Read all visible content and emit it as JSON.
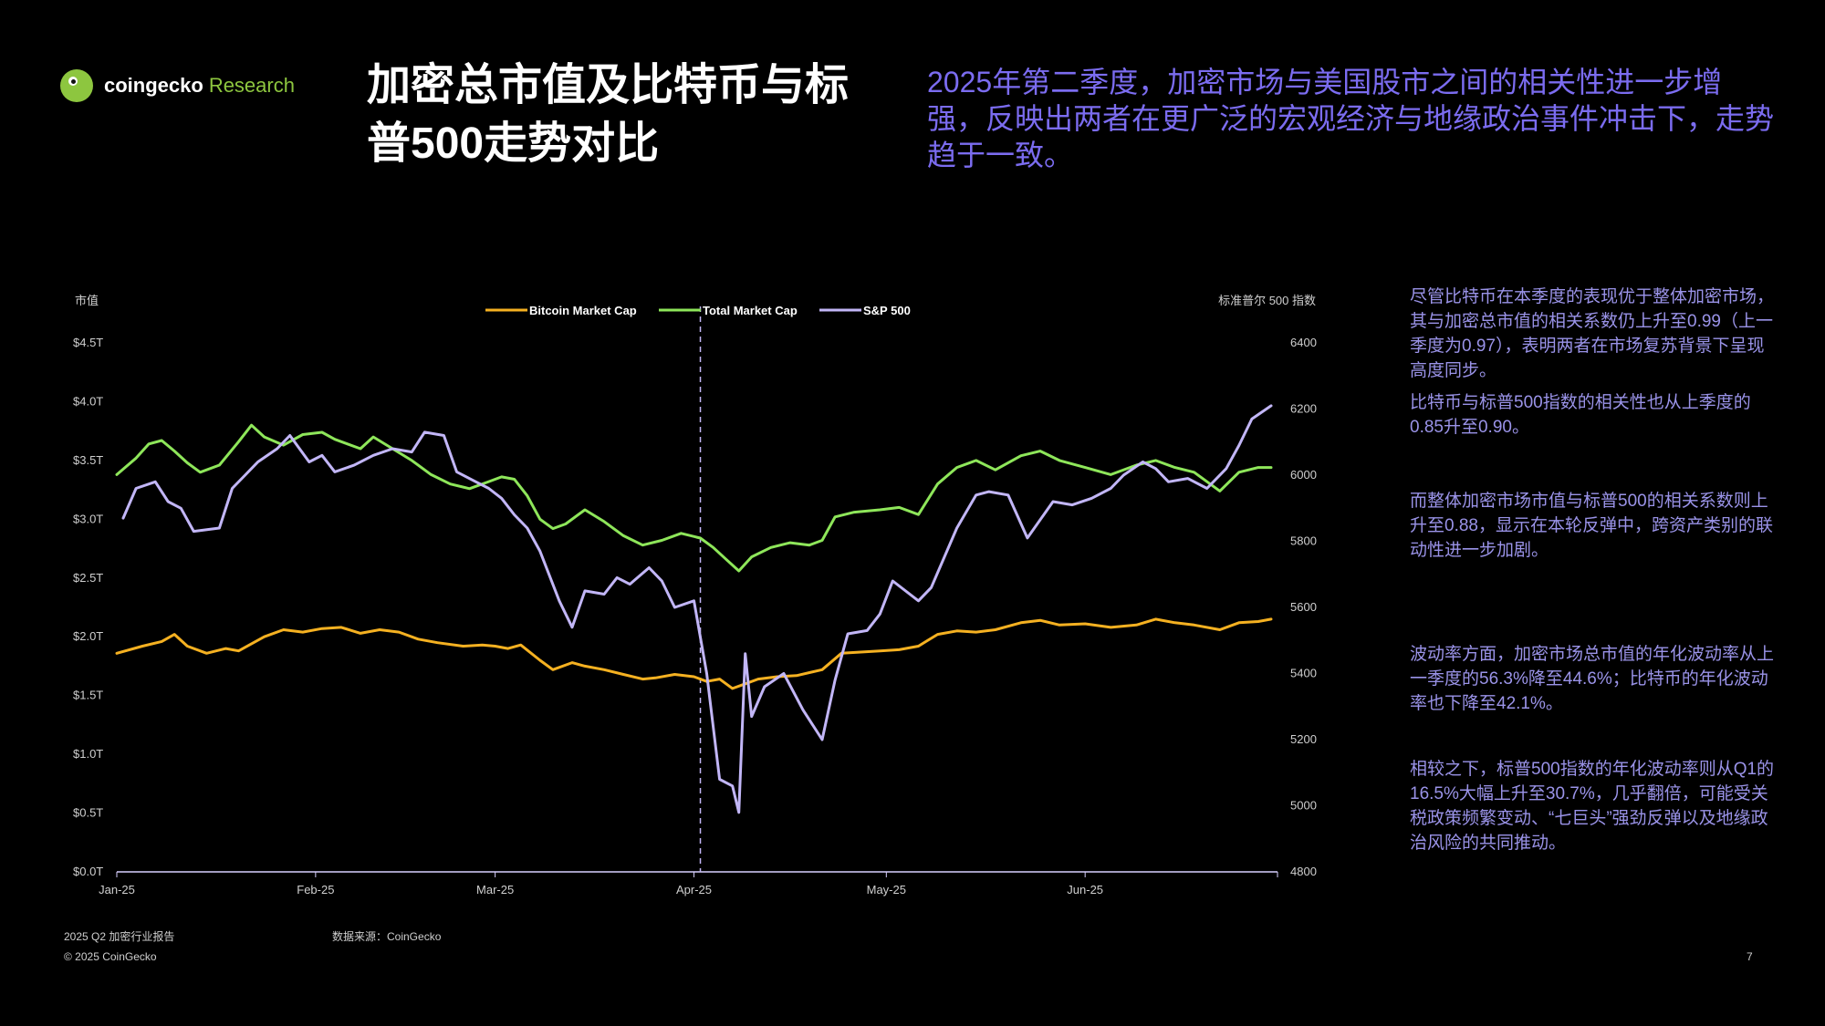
{
  "logo": {
    "brand": "coingecko",
    "brand2": "Research"
  },
  "title": "加密总市值及比特币与标普500走势对比",
  "summary": "2025年第二季度，加密市场与美国股市之间的相关性进一步增强，反映出两者在更广泛的宏观经济与地缘政治事件冲击下，走势趋于一致。",
  "side_notes": [
    "尽管比特币在本季度的表现优于整体加密市场，其与加密总市值的相关系数仍上升至0.99（上一季度为0.97），表明两者在市场复苏背景下呈现高度同步。",
    "比特币与标普500指数的相关性也从上季度的0.85升至0.90。",
    "而整体加密市场市值与标普500的相关系数则上升至0.88，显示在本轮反弹中，跨资产类别的联动性进一步加剧。",
    "波动率方面，加密市场总市值的年化波动率从上一季度的56.3%降至44.6%；比特币的年化波动率也下降至42.1%。",
    "相较之下，标普500指数的年化波动率则从Q1的16.5%大幅上升至30.7%，几乎翻倍，可能受关税政策频繁变动、“七巨头”强劲反弹以及地缘政治风险的共同推动。"
  ],
  "footer": {
    "report": "2025 Q2 加密行业报告",
    "source": "数据来源：CoinGecko",
    "copyright": "© 2025 CoinGecko",
    "page": "7"
  },
  "colors": {
    "bitcoin": "#f5b121",
    "total": "#8ee65a",
    "sp500": "#c2b6f7",
    "accent": "#7b6cf0"
  },
  "chart_data": {
    "type": "line",
    "left_axis_label": "市值",
    "right_axis_label": "标准普尔 500 指数",
    "left_ticks": [
      "$0.0T",
      "$0.5T",
      "$1.0T",
      "$1.5T",
      "$2.0T",
      "$2.5T",
      "$3.0T",
      "$3.5T",
      "$4.0T",
      "$4.5T"
    ],
    "right_ticks": [
      "4800",
      "5000",
      "5200",
      "5400",
      "5600",
      "5800",
      "6000",
      "6200",
      "6400"
    ],
    "x_ticks": [
      "Jan-25",
      "Feb-25",
      "Mar-25",
      "Apr-25",
      "May-25",
      "Jun-25"
    ],
    "left_range": [
      0,
      4.5
    ],
    "right_range": [
      4800,
      6400
    ],
    "marker_date": "2025-04-02",
    "legend_position": "top-center",
    "series": [
      {
        "name": "Bitcoin Market Cap",
        "axis": "left",
        "points": [
          [
            "2025-01-01",
            1.86
          ],
          [
            "2025-01-05",
            1.92
          ],
          [
            "2025-01-08",
            1.96
          ],
          [
            "2025-01-10",
            2.02
          ],
          [
            "2025-01-12",
            1.92
          ],
          [
            "2025-01-15",
            1.86
          ],
          [
            "2025-01-18",
            1.9
          ],
          [
            "2025-01-20",
            1.88
          ],
          [
            "2025-01-24",
            2.0
          ],
          [
            "2025-01-27",
            2.06
          ],
          [
            "2025-01-30",
            2.04
          ],
          [
            "2025-02-02",
            2.07
          ],
          [
            "2025-02-05",
            2.08
          ],
          [
            "2025-02-08",
            2.03
          ],
          [
            "2025-02-11",
            2.06
          ],
          [
            "2025-02-14",
            2.04
          ],
          [
            "2025-02-17",
            1.98
          ],
          [
            "2025-02-20",
            1.95
          ],
          [
            "2025-02-24",
            1.92
          ],
          [
            "2025-02-27",
            1.93
          ],
          [
            "2025-03-01",
            1.92
          ],
          [
            "2025-03-03",
            1.9
          ],
          [
            "2025-03-05",
            1.93
          ],
          [
            "2025-03-08",
            1.8
          ],
          [
            "2025-03-10",
            1.72
          ],
          [
            "2025-03-13",
            1.78
          ],
          [
            "2025-03-15",
            1.75
          ],
          [
            "2025-03-18",
            1.72
          ],
          [
            "2025-03-21",
            1.68
          ],
          [
            "2025-03-24",
            1.64
          ],
          [
            "2025-03-26",
            1.65
          ],
          [
            "2025-03-29",
            1.68
          ],
          [
            "2025-04-01",
            1.66
          ],
          [
            "2025-04-03",
            1.62
          ],
          [
            "2025-04-05",
            1.64
          ],
          [
            "2025-04-07",
            1.56
          ],
          [
            "2025-04-09",
            1.6
          ],
          [
            "2025-04-11",
            1.64
          ],
          [
            "2025-04-14",
            1.66
          ],
          [
            "2025-04-17",
            1.67
          ],
          [
            "2025-04-21",
            1.72
          ],
          [
            "2025-04-24",
            1.86
          ],
          [
            "2025-04-27",
            1.87
          ],
          [
            "2025-04-30",
            1.88
          ],
          [
            "2025-05-03",
            1.89
          ],
          [
            "2025-05-06",
            1.92
          ],
          [
            "2025-05-09",
            2.02
          ],
          [
            "2025-05-12",
            2.05
          ],
          [
            "2025-05-15",
            2.04
          ],
          [
            "2025-05-18",
            2.06
          ],
          [
            "2025-05-22",
            2.12
          ],
          [
            "2025-05-25",
            2.14
          ],
          [
            "2025-05-28",
            2.1
          ],
          [
            "2025-06-01",
            2.11
          ],
          [
            "2025-06-05",
            2.08
          ],
          [
            "2025-06-09",
            2.1
          ],
          [
            "2025-06-12",
            2.15
          ],
          [
            "2025-06-15",
            2.12
          ],
          [
            "2025-06-18",
            2.1
          ],
          [
            "2025-06-22",
            2.06
          ],
          [
            "2025-06-25",
            2.12
          ],
          [
            "2025-06-28",
            2.13
          ],
          [
            "2025-06-30",
            2.15
          ]
        ]
      },
      {
        "name": "Total Market Cap",
        "axis": "left",
        "points": [
          [
            "2025-01-01",
            3.38
          ],
          [
            "2025-01-04",
            3.52
          ],
          [
            "2025-01-06",
            3.64
          ],
          [
            "2025-01-08",
            3.67
          ],
          [
            "2025-01-10",
            3.58
          ],
          [
            "2025-01-12",
            3.48
          ],
          [
            "2025-01-14",
            3.4
          ],
          [
            "2025-01-17",
            3.46
          ],
          [
            "2025-01-20",
            3.66
          ],
          [
            "2025-01-22",
            3.8
          ],
          [
            "2025-01-24",
            3.7
          ],
          [
            "2025-01-27",
            3.63
          ],
          [
            "2025-01-30",
            3.72
          ],
          [
            "2025-02-02",
            3.74
          ],
          [
            "2025-02-04",
            3.68
          ],
          [
            "2025-02-08",
            3.6
          ],
          [
            "2025-02-10",
            3.7
          ],
          [
            "2025-02-13",
            3.6
          ],
          [
            "2025-02-16",
            3.5
          ],
          [
            "2025-02-19",
            3.38
          ],
          [
            "2025-02-22",
            3.3
          ],
          [
            "2025-02-25",
            3.26
          ],
          [
            "2025-02-28",
            3.32
          ],
          [
            "2025-03-02",
            3.36
          ],
          [
            "2025-03-04",
            3.34
          ],
          [
            "2025-03-06",
            3.2
          ],
          [
            "2025-03-08",
            3.0
          ],
          [
            "2025-03-10",
            2.92
          ],
          [
            "2025-03-12",
            2.96
          ],
          [
            "2025-03-15",
            3.08
          ],
          [
            "2025-03-18",
            2.98
          ],
          [
            "2025-03-21",
            2.86
          ],
          [
            "2025-03-24",
            2.78
          ],
          [
            "2025-03-27",
            2.82
          ],
          [
            "2025-03-30",
            2.88
          ],
          [
            "2025-04-02",
            2.84
          ],
          [
            "2025-04-04",
            2.76
          ],
          [
            "2025-04-06",
            2.66
          ],
          [
            "2025-04-08",
            2.56
          ],
          [
            "2025-04-10",
            2.68
          ],
          [
            "2025-04-13",
            2.76
          ],
          [
            "2025-04-16",
            2.8
          ],
          [
            "2025-04-19",
            2.78
          ],
          [
            "2025-04-21",
            2.82
          ],
          [
            "2025-04-23",
            3.02
          ],
          [
            "2025-04-26",
            3.06
          ],
          [
            "2025-04-30",
            3.08
          ],
          [
            "2025-05-03",
            3.1
          ],
          [
            "2025-05-06",
            3.04
          ],
          [
            "2025-05-09",
            3.3
          ],
          [
            "2025-05-12",
            3.44
          ],
          [
            "2025-05-15",
            3.5
          ],
          [
            "2025-05-18",
            3.42
          ],
          [
            "2025-05-22",
            3.54
          ],
          [
            "2025-05-25",
            3.58
          ],
          [
            "2025-05-28",
            3.5
          ],
          [
            "2025-06-01",
            3.44
          ],
          [
            "2025-06-05",
            3.38
          ],
          [
            "2025-06-09",
            3.46
          ],
          [
            "2025-06-12",
            3.5
          ],
          [
            "2025-06-15",
            3.44
          ],
          [
            "2025-06-18",
            3.4
          ],
          [
            "2025-06-22",
            3.24
          ],
          [
            "2025-06-25",
            3.4
          ],
          [
            "2025-06-28",
            3.44
          ],
          [
            "2025-06-30",
            3.44
          ]
        ]
      },
      {
        "name": "S&P 500",
        "axis": "right",
        "points": [
          [
            "2025-01-02",
            5870
          ],
          [
            "2025-01-04",
            5960
          ],
          [
            "2025-01-07",
            5980
          ],
          [
            "2025-01-09",
            5920
          ],
          [
            "2025-01-11",
            5900
          ],
          [
            "2025-01-13",
            5830
          ],
          [
            "2025-01-17",
            5840
          ],
          [
            "2025-01-19",
            5960
          ],
          [
            "2025-01-21",
            6000
          ],
          [
            "2025-01-23",
            6040
          ],
          [
            "2025-01-26",
            6080
          ],
          [
            "2025-01-28",
            6120
          ],
          [
            "2025-01-31",
            6040
          ],
          [
            "2025-02-02",
            6060
          ],
          [
            "2025-02-04",
            6010
          ],
          [
            "2025-02-07",
            6030
          ],
          [
            "2025-02-10",
            6060
          ],
          [
            "2025-02-13",
            6080
          ],
          [
            "2025-02-16",
            6070
          ],
          [
            "2025-02-18",
            6130
          ],
          [
            "2025-02-21",
            6120
          ],
          [
            "2025-02-23",
            6010
          ],
          [
            "2025-02-26",
            5980
          ],
          [
            "2025-02-28",
            5960
          ],
          [
            "2025-03-02",
            5930
          ],
          [
            "2025-03-04",
            5880
          ],
          [
            "2025-03-06",
            5840
          ],
          [
            "2025-03-08",
            5770
          ],
          [
            "2025-03-11",
            5620
          ],
          [
            "2025-03-13",
            5540
          ],
          [
            "2025-03-15",
            5650
          ],
          [
            "2025-03-18",
            5640
          ],
          [
            "2025-03-20",
            5690
          ],
          [
            "2025-03-22",
            5670
          ],
          [
            "2025-03-25",
            5720
          ],
          [
            "2025-03-27",
            5680
          ],
          [
            "2025-03-29",
            5600
          ],
          [
            "2025-04-01",
            5620
          ],
          [
            "2025-04-03",
            5400
          ],
          [
            "2025-04-05",
            5080
          ],
          [
            "2025-04-07",
            5060
          ],
          [
            "2025-04-08",
            4980
          ],
          [
            "2025-04-09",
            5460
          ],
          [
            "2025-04-10",
            5270
          ],
          [
            "2025-04-12",
            5360
          ],
          [
            "2025-04-15",
            5400
          ],
          [
            "2025-04-18",
            5290
          ],
          [
            "2025-04-21",
            5200
          ],
          [
            "2025-04-23",
            5380
          ],
          [
            "2025-04-25",
            5520
          ],
          [
            "2025-04-28",
            5530
          ],
          [
            "2025-04-30",
            5580
          ],
          [
            "2025-05-02",
            5680
          ],
          [
            "2025-05-06",
            5620
          ],
          [
            "2025-05-08",
            5660
          ],
          [
            "2025-05-12",
            5840
          ],
          [
            "2025-05-15",
            5940
          ],
          [
            "2025-05-17",
            5950
          ],
          [
            "2025-05-20",
            5940
          ],
          [
            "2025-05-23",
            5810
          ],
          [
            "2025-05-27",
            5920
          ],
          [
            "2025-05-30",
            5910
          ],
          [
            "2025-06-02",
            5930
          ],
          [
            "2025-06-05",
            5960
          ],
          [
            "2025-06-07",
            6000
          ],
          [
            "2025-06-10",
            6040
          ],
          [
            "2025-06-12",
            6020
          ],
          [
            "2025-06-14",
            5980
          ],
          [
            "2025-06-17",
            5990
          ],
          [
            "2025-06-20",
            5960
          ],
          [
            "2025-06-23",
            6020
          ],
          [
            "2025-06-25",
            6090
          ],
          [
            "2025-06-27",
            6170
          ],
          [
            "2025-06-30",
            6210
          ]
        ]
      }
    ]
  }
}
